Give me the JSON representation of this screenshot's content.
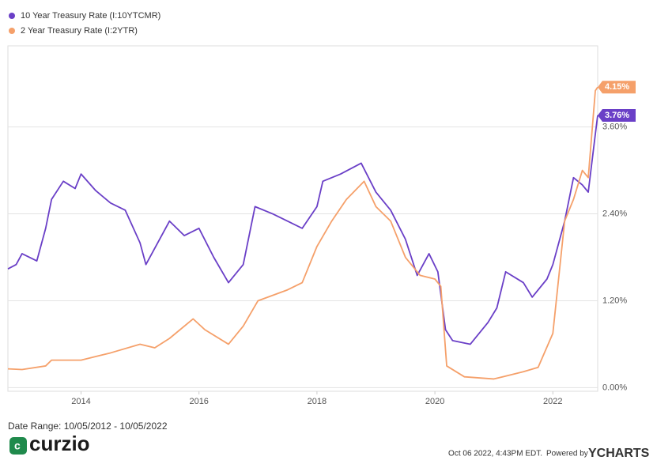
{
  "chart_data": {
    "type": "line",
    "xlim": [
      2012.76,
      2022.76
    ],
    "xticks": [
      2014,
      2016,
      2018,
      2020,
      2022
    ],
    "ylim": [
      -0.05,
      4.72
    ],
    "yticks": [
      {
        "value": 0,
        "label": "0.00%"
      },
      {
        "value": 1.2,
        "label": "1.20%"
      },
      {
        "value": 2.4,
        "label": "2.40%"
      },
      {
        "value": 3.6,
        "label": "3.60%"
      }
    ],
    "grid": true,
    "legend": "top-left",
    "series": [
      {
        "name": "10 Year Treasury Rate (I:10YTCMR)",
        "color": "#6a3fc7",
        "x": [
          2012.76,
          2012.9,
          2013.0,
          2013.25,
          2013.4,
          2013.5,
          2013.7,
          2013.9,
          2014.0,
          2014.25,
          2014.5,
          2014.75,
          2015.0,
          2015.1,
          2015.5,
          2015.75,
          2016.0,
          2016.25,
          2016.5,
          2016.75,
          2016.95,
          2017.25,
          2017.5,
          2017.75,
          2018.0,
          2018.1,
          2018.4,
          2018.75,
          2019.0,
          2019.25,
          2019.5,
          2019.7,
          2019.9,
          2020.05,
          2020.18,
          2020.3,
          2020.6,
          2020.9,
          2021.05,
          2021.2,
          2021.5,
          2021.65,
          2021.9,
          2022.0,
          2022.2,
          2022.35,
          2022.5,
          2022.6,
          2022.72,
          2022.76
        ],
        "values": [
          1.64,
          1.7,
          1.85,
          1.75,
          2.2,
          2.6,
          2.85,
          2.75,
          2.95,
          2.72,
          2.55,
          2.45,
          2.0,
          1.7,
          2.3,
          2.1,
          2.2,
          1.8,
          1.45,
          1.7,
          2.5,
          2.4,
          2.3,
          2.2,
          2.5,
          2.85,
          2.95,
          3.1,
          2.7,
          2.45,
          2.05,
          1.55,
          1.85,
          1.6,
          0.8,
          0.65,
          0.6,
          0.9,
          1.1,
          1.6,
          1.45,
          1.25,
          1.5,
          1.7,
          2.3,
          2.9,
          2.8,
          2.7,
          3.5,
          3.76
        ],
        "end_label": "3.76%"
      },
      {
        "name": "2 Year Treasury Rate (I:2YTR)",
        "color": "#f5a06a",
        "x": [
          2012.76,
          2013.0,
          2013.4,
          2013.5,
          2014.0,
          2014.5,
          2015.0,
          2015.25,
          2015.5,
          2015.9,
          2016.1,
          2016.5,
          2016.75,
          2017.0,
          2017.5,
          2017.75,
          2018.0,
          2018.25,
          2018.5,
          2018.8,
          2019.0,
          2019.25,
          2019.5,
          2019.75,
          2020.0,
          2020.1,
          2020.2,
          2020.5,
          2021.0,
          2021.5,
          2021.75,
          2022.0,
          2022.2,
          2022.35,
          2022.5,
          2022.6,
          2022.72,
          2022.76
        ],
        "values": [
          0.26,
          0.25,
          0.3,
          0.38,
          0.38,
          0.48,
          0.6,
          0.55,
          0.68,
          0.95,
          0.8,
          0.6,
          0.85,
          1.2,
          1.35,
          1.45,
          1.95,
          2.3,
          2.6,
          2.85,
          2.5,
          2.3,
          1.8,
          1.55,
          1.5,
          1.4,
          0.3,
          0.15,
          0.12,
          0.22,
          0.28,
          0.75,
          2.3,
          2.6,
          3.0,
          2.9,
          4.1,
          4.15
        ],
        "end_label": "4.15%"
      }
    ]
  },
  "footer": {
    "date_range": "Date Range: 10/05/2012 - 10/05/2022",
    "timestamp": "Oct 06 2022, 4:43PM EDT.",
    "powered_by": "Powered by",
    "ycharts": "YCHARTS",
    "brand": "curzio"
  }
}
